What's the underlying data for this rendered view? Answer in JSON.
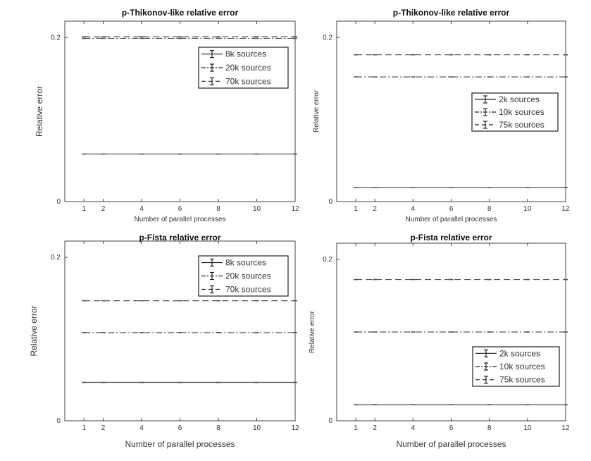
{
  "chart_data": [
    {
      "type": "line",
      "title": "p-Thikonov-like relative error",
      "xlabel": "Number of parallel processes",
      "ylabel": "Relative error",
      "xlim": [
        0,
        12
      ],
      "ylim": [
        0,
        0.22
      ],
      "xticks": [
        1,
        2,
        4,
        6,
        8,
        10,
        12
      ],
      "yticks": [
        0,
        0.2
      ],
      "ytick_labels": [
        "0",
        "0.2"
      ],
      "legend_position": "top-right",
      "series": [
        {
          "name": "8k sources",
          "style": "solid",
          "x": [
            1,
            2,
            4,
            6,
            8,
            10,
            12
          ],
          "values": [
            0.058,
            0.058,
            0.058,
            0.058,
            0.058,
            0.058,
            0.058
          ]
        },
        {
          "name": "20k sources",
          "style": "dashdot",
          "x": [
            1,
            2,
            4,
            6,
            8,
            10,
            12
          ],
          "values": [
            0.199,
            0.199,
            0.199,
            0.199,
            0.199,
            0.199,
            0.199
          ]
        },
        {
          "name": "70k sources",
          "style": "dashed",
          "x": [
            1,
            2,
            4,
            6,
            8,
            10,
            12
          ],
          "values": [
            0.201,
            0.201,
            0.201,
            0.201,
            0.201,
            0.201,
            0.201
          ]
        }
      ]
    },
    {
      "type": "line",
      "title": "p-Thikonov-like relative error",
      "xlabel": "Number of parallel processes",
      "ylabel": "Relative error",
      "xlim": [
        0,
        12
      ],
      "ylim": [
        0,
        0.22
      ],
      "xticks": [
        1,
        2,
        4,
        6,
        8,
        10,
        12
      ],
      "yticks": [
        0,
        0.2
      ],
      "ytick_labels": [
        "0",
        "0.2"
      ],
      "legend_position": "middle-right",
      "series": [
        {
          "name": "2k sources",
          "style": "solid",
          "x": [
            1,
            2,
            4,
            6,
            8,
            10,
            12
          ],
          "values": [
            0.017,
            0.017,
            0.017,
            0.017,
            0.017,
            0.017,
            0.017
          ]
        },
        {
          "name": "10k sources",
          "style": "dashdot",
          "x": [
            1,
            2,
            4,
            6,
            8,
            10,
            12
          ],
          "values": [
            0.152,
            0.152,
            0.152,
            0.152,
            0.152,
            0.152,
            0.152
          ]
        },
        {
          "name": "75k sources",
          "style": "dashed",
          "x": [
            1,
            2,
            4,
            6,
            8,
            10,
            12
          ],
          "values": [
            0.179,
            0.179,
            0.179,
            0.179,
            0.179,
            0.179,
            0.179
          ]
        }
      ]
    },
    {
      "type": "line",
      "title": "p-Fista relative error",
      "xlabel": "Number of parallel processes",
      "ylabel": "Relative error",
      "xlim": [
        0,
        12
      ],
      "ylim": [
        0,
        0.22
      ],
      "xticks": [
        1,
        2,
        4,
        6,
        8,
        10,
        12
      ],
      "yticks": [
        0,
        0.2
      ],
      "ytick_labels": [
        "0",
        "0.2"
      ],
      "legend_position": "top-right",
      "series": [
        {
          "name": "8k sources",
          "style": "solid",
          "x": [
            1,
            2,
            4,
            6,
            8,
            10,
            12
          ],
          "values": [
            0.047,
            0.047,
            0.047,
            0.047,
            0.047,
            0.047,
            0.047
          ]
        },
        {
          "name": "20k sources",
          "style": "dashdot",
          "x": [
            1,
            2,
            4,
            6,
            8,
            10,
            12
          ],
          "values": [
            0.108,
            0.108,
            0.108,
            0.108,
            0.108,
            0.108,
            0.108
          ]
        },
        {
          "name": "70k sources",
          "style": "dashed",
          "x": [
            1,
            2,
            4,
            6,
            8,
            10,
            12
          ],
          "values": [
            0.147,
            0.147,
            0.147,
            0.147,
            0.147,
            0.147,
            0.147
          ]
        }
      ]
    },
    {
      "type": "line",
      "title": "p-Fista relative error",
      "xlabel": "Number of parallel processes",
      "ylabel": "Relative error",
      "xlim": [
        0,
        12
      ],
      "ylim": [
        0,
        0.22
      ],
      "xticks": [
        1,
        2,
        4,
        6,
        8,
        10,
        12
      ],
      "yticks": [
        0,
        0.2
      ],
      "ytick_labels": [
        "0",
        "0.2"
      ],
      "legend_position": "bottom-right",
      "series": [
        {
          "name": "2k sources",
          "style": "solid",
          "x": [
            1,
            2,
            4,
            6,
            8,
            10,
            12
          ],
          "values": [
            0.02,
            0.02,
            0.02,
            0.02,
            0.02,
            0.02,
            0.02
          ]
        },
        {
          "name": "10k sources",
          "style": "dashdot",
          "x": [
            1,
            2,
            4,
            6,
            8,
            10,
            12
          ],
          "values": [
            0.11,
            0.11,
            0.11,
            0.11,
            0.11,
            0.11,
            0.11
          ]
        },
        {
          "name": "75k sources",
          "style": "dashed",
          "x": [
            1,
            2,
            4,
            6,
            8,
            10,
            12
          ],
          "values": [
            0.175,
            0.175,
            0.175,
            0.175,
            0.175,
            0.175,
            0.175
          ]
        }
      ]
    }
  ]
}
